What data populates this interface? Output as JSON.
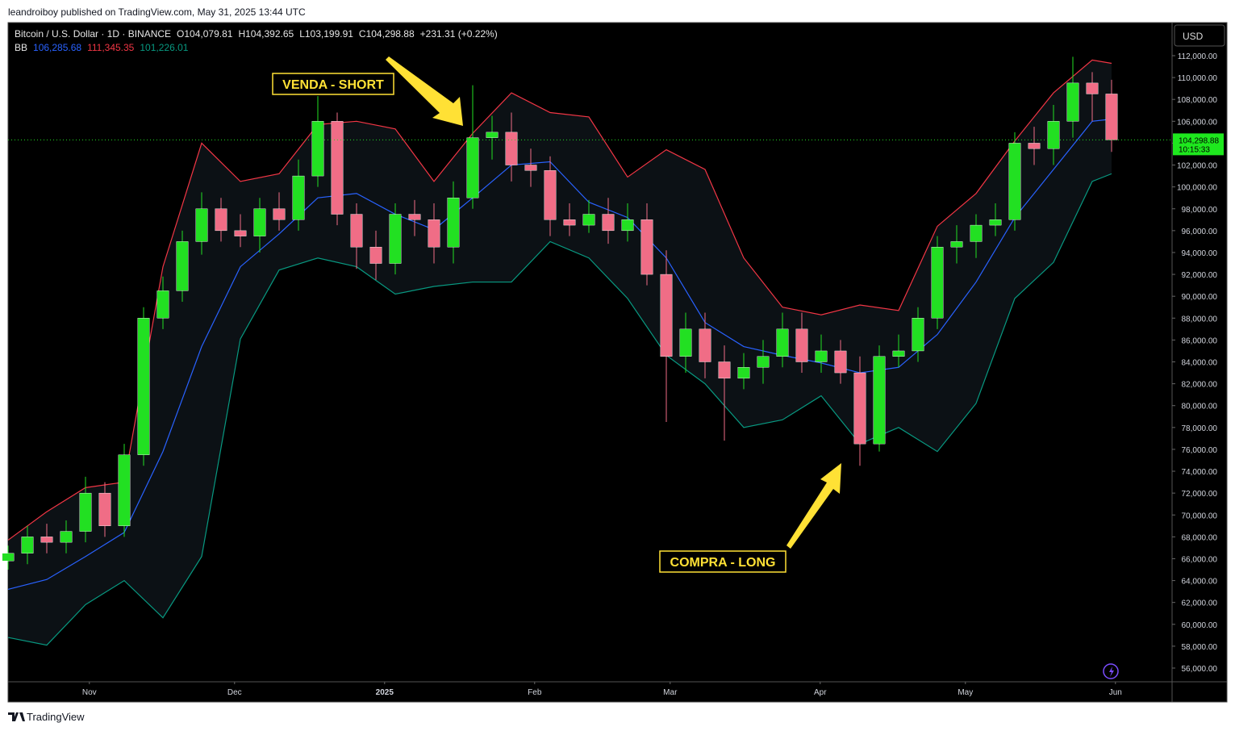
{
  "publisher": "leandroiboy published on TradingView.com, May 31, 2025 13:44 UTC",
  "footer": "TradingView",
  "chart_data": {
    "type": "candlestick",
    "title": "Bitcoin / U.S. Dollar · 1D · BINANCE",
    "ohlc_labels": [
      "O104,079.81",
      "H104,392.65",
      "L103,199.91",
      "C104,298.88",
      "+231.31 (+0.22%)"
    ],
    "indicator": {
      "name": "BB",
      "labels": [
        "106,285.68",
        "111,345.35",
        "101,226.01"
      ],
      "colors": [
        "#2962ff",
        "#f23645",
        "#089981"
      ]
    },
    "currency": "USD",
    "up_color": "#22e022",
    "down_color": "#f06d86",
    "x": [
      0,
      4,
      8,
      12,
      16,
      20,
      24,
      28,
      32,
      36,
      40,
      44,
      48,
      52,
      56,
      60,
      64,
      68,
      72,
      76,
      80,
      84,
      88,
      92,
      96,
      100,
      104,
      108,
      112,
      116,
      120,
      124,
      128,
      132,
      136,
      140,
      144,
      148,
      152,
      156,
      160,
      164,
      168,
      172,
      176,
      180,
      184,
      188,
      192,
      196,
      200,
      204,
      208,
      212,
      216,
      220,
      224,
      228
    ],
    "open": [
      65800,
      66500,
      68000,
      67500,
      68500,
      72000,
      69000,
      75500,
      88000,
      90500,
      95000,
      98000,
      96000,
      95500,
      98000,
      97000,
      101000,
      106000,
      97500,
      94500,
      93000,
      97500,
      97000,
      94500,
      99000,
      104500,
      105000,
      102000,
      101500,
      97000,
      96500,
      97500,
      96000,
      97000,
      92000,
      84500,
      87000,
      84000,
      82500,
      83500,
      84500,
      87000,
      84000,
      85000,
      83000,
      76500,
      84500,
      85000,
      88000,
      94500,
      95000,
      96500,
      97000,
      104000,
      103500,
      106000,
      109500,
      108500
    ],
    "high": [
      67200,
      69000,
      69200,
      69500,
      73500,
      73000,
      76500,
      89000,
      91800,
      96000,
      99500,
      99000,
      97500,
      99000,
      99500,
      102500,
      108300,
      106800,
      98500,
      96000,
      98500,
      98800,
      98500,
      100500,
      109300,
      106500,
      106800,
      103500,
      102800,
      98500,
      98800,
      99000,
      98500,
      98500,
      94200,
      88500,
      88500,
      85500,
      84800,
      86000,
      88500,
      88500,
      86500,
      86000,
      84500,
      85500,
      86500,
      89000,
      95500,
      96500,
      97500,
      98500,
      105000,
      105500,
      107500,
      111900,
      110500,
      109800
    ],
    "low": [
      65000,
      65500,
      66500,
      66500,
      67500,
      68000,
      68000,
      74500,
      87000,
      89500,
      93800,
      95000,
      94500,
      94000,
      96000,
      96000,
      100000,
      96500,
      92500,
      91500,
      92000,
      95500,
      93000,
      93000,
      98000,
      102500,
      100500,
      100000,
      95500,
      95500,
      95800,
      94800,
      95000,
      91000,
      78500,
      83000,
      82500,
      76800,
      81500,
      82000,
      83500,
      83000,
      83000,
      82000,
      74500,
      75800,
      83500,
      84000,
      87000,
      93000,
      93500,
      95500,
      96000,
      102000,
      102000,
      104500,
      106000,
      103200
    ],
    "close": [
      66500,
      68000,
      67500,
      68500,
      72000,
      69000,
      75500,
      88000,
      90500,
      95000,
      98000,
      96000,
      95500,
      98000,
      97000,
      101000,
      106000,
      97500,
      94500,
      93000,
      97500,
      97000,
      94500,
      99000,
      104500,
      105000,
      102000,
      101500,
      97000,
      96500,
      97500,
      96000,
      97000,
      92000,
      84500,
      87000,
      84000,
      82500,
      83500,
      84500,
      87000,
      84000,
      85000,
      83000,
      76500,
      84500,
      85000,
      88000,
      94500,
      95000,
      96500,
      97000,
      104000,
      103500,
      106000,
      109500,
      108500,
      104298.88
    ],
    "bands": {
      "x": [
        0,
        8,
        16,
        24,
        32,
        40,
        48,
        56,
        64,
        72,
        80,
        88,
        96,
        104,
        112,
        120,
        128,
        136,
        144,
        152,
        160,
        168,
        176,
        184,
        192,
        200,
        208,
        216,
        224,
        228
      ],
      "upper": [
        67700,
        70300,
        72500,
        73000,
        92700,
        104000,
        100500,
        101200,
        105700,
        106000,
        105300,
        100500,
        104900,
        108600,
        106800,
        106400,
        100900,
        103400,
        101600,
        93500,
        89000,
        88300,
        89200,
        88700,
        96400,
        99400,
        104200,
        108600,
        111600,
        111300
      ],
      "middle": [
        63200,
        64100,
        66200,
        68400,
        75800,
        85400,
        92700,
        95700,
        99000,
        99400,
        97500,
        96100,
        99000,
        102000,
        102300,
        98600,
        97200,
        93500,
        87600,
        85400,
        84600,
        83900,
        83000,
        83500,
        86500,
        91300,
        97200,
        101600,
        106000,
        106200
      ],
      "lower": [
        58800,
        58100,
        61800,
        64000,
        60600,
        66200,
        86100,
        92400,
        93500,
        92700,
        90200,
        90900,
        91300,
        91300,
        95000,
        93500,
        89800,
        84600,
        82000,
        78000,
        78700,
        80900,
        76500,
        78000,
        75800,
        80200,
        89800,
        93100,
        100500,
        101200
      ],
      "upper_color": "#f23645",
      "middle_color": "#2962ff",
      "lower_color": "#089981",
      "fill": "#0c1115"
    },
    "last_price": {
      "value": 104298.88,
      "label": "104,298.88"
    },
    "countdown": "10:15:33",
    "annotations": [
      "VENDA - SHORT",
      "COMPRA - LONG"
    ],
    "xlim": [
      0,
      240.5
    ],
    "xticks": [
      {
        "value": 16.8,
        "label": "Nov"
      },
      {
        "value": 46.8,
        "label": "Dec"
      },
      {
        "value": 77.8,
        "label": "2025"
      },
      {
        "value": 108.8,
        "label": "Feb"
      },
      {
        "value": 136.8,
        "label": "Mar"
      },
      {
        "value": 167.8,
        "label": "Apr"
      },
      {
        "value": 197.8,
        "label": "May"
      },
      {
        "value": 228.8,
        "label": "Jun"
      }
    ],
    "ylim": [
      54746,
      115025
    ],
    "yticks": [
      {
        "value": 56000,
        "label": "56,000.00"
      },
      {
        "value": 58000,
        "label": "58,000.00"
      },
      {
        "value": 60000,
        "label": "60,000.00"
      },
      {
        "value": 62000,
        "label": "62,000.00"
      },
      {
        "value": 64000,
        "label": "64,000.00"
      },
      {
        "value": 66000,
        "label": "66,000.00"
      },
      {
        "value": 68000,
        "label": "68,000.00"
      },
      {
        "value": 70000,
        "label": "70,000.00"
      },
      {
        "value": 72000,
        "label": "72,000.00"
      },
      {
        "value": 74000,
        "label": "74,000.00"
      },
      {
        "value": 76000,
        "label": "76,000.00"
      },
      {
        "value": 78000,
        "label": "78,000.00"
      },
      {
        "value": 80000,
        "label": "80,000.00"
      },
      {
        "value": 82000,
        "label": "82,000.00"
      },
      {
        "value": 84000,
        "label": "84,000.00"
      },
      {
        "value": 86000,
        "label": "86,000.00"
      },
      {
        "value": 88000,
        "label": "88,000.00"
      },
      {
        "value": 90000,
        "label": "90,000.00"
      },
      {
        "value": 92000,
        "label": "92,000.00"
      },
      {
        "value": 94000,
        "label": "94,000.00"
      },
      {
        "value": 96000,
        "label": "96,000.00"
      },
      {
        "value": 98000,
        "label": "98,000.00"
      },
      {
        "value": 100000,
        "label": "100,000.00"
      },
      {
        "value": 102000,
        "label": "102,000.00"
      },
      {
        "value": 104000,
        "label": "104,000.00"
      },
      {
        "value": 106000,
        "label": "106,000.00"
      },
      {
        "value": 108000,
        "label": "108,000.00"
      },
      {
        "value": 110000,
        "label": "110,000.00"
      },
      {
        "value": 112000,
        "label": "112,000.00"
      }
    ]
  }
}
